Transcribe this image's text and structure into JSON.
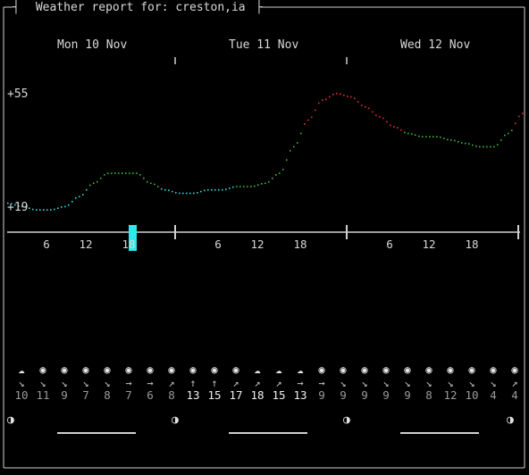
{
  "header": {
    "title": " Weather report for: creston,ia "
  },
  "days": [
    "Mon 10 Nov",
    "Tue 11 Nov",
    "Wed 12 Nov"
  ],
  "y_axis": {
    "max_label": "+55",
    "min_label": "+19"
  },
  "hour_ticks": [
    "6",
    "12",
    "18",
    "6",
    "12",
    "18",
    "6",
    "12",
    "18"
  ],
  "colors": {
    "cold": "#35d8dd",
    "mild": "#3cb83c",
    "warm": "#e03030",
    "cursor": "#33e6ea"
  },
  "chart_data": {
    "type": "line",
    "series": [
      {
        "name": "",
        "unit": "°F",
        "x": [
          0,
          2,
          4,
          6,
          8,
          10,
          12,
          14,
          16,
          18,
          20,
          22,
          24,
          26,
          28,
          30,
          32,
          34,
          36,
          38,
          40,
          42,
          44,
          46,
          48,
          50,
          52,
          54,
          56,
          58,
          60,
          62,
          64,
          66,
          68,
          70,
          72
        ],
        "values": [
          22,
          21,
          20,
          20,
          21,
          24,
          28,
          31,
          31,
          31,
          28,
          26,
          25,
          25,
          26,
          26,
          27,
          27,
          28,
          31,
          39,
          47,
          53,
          55,
          54,
          51,
          48,
          45,
          43,
          42,
          42,
          41,
          40,
          39,
          39,
          43,
          49
        ]
      }
    ],
    "ylim": [
      19,
      55
    ],
    "current_hour": 16
  },
  "forecast": [
    {
      "icon": "☁",
      "dir": "↘",
      "wind": "10"
    },
    {
      "icon": "◉",
      "dir": "↘",
      "wind": "11"
    },
    {
      "icon": "◉",
      "dir": "↘",
      "wind": "9"
    },
    {
      "icon": "◉",
      "dir": "↘",
      "wind": "7"
    },
    {
      "icon": "◉",
      "dir": "↘",
      "wind": "8"
    },
    {
      "icon": "◉",
      "dir": "→",
      "wind": "7"
    },
    {
      "icon": "◉",
      "dir": "→",
      "wind": "6"
    },
    {
      "icon": "◉",
      "dir": "↗",
      "wind": "8"
    },
    {
      "icon": "◉",
      "dir": "↑",
      "wind": "13"
    },
    {
      "icon": "◉",
      "dir": "↑",
      "wind": "15"
    },
    {
      "icon": "◉",
      "dir": "↗",
      "wind": "17"
    },
    {
      "icon": "☁",
      "dir": "↗",
      "wind": "18"
    },
    {
      "icon": "☁",
      "dir": "↗",
      "wind": "15"
    },
    {
      "icon": "☁",
      "dir": "→",
      "wind": "13"
    },
    {
      "icon": "◉",
      "dir": "→",
      "wind": "9"
    },
    {
      "icon": "◉",
      "dir": "↘",
      "wind": "9"
    },
    {
      "icon": "◉",
      "dir": "↘",
      "wind": "9"
    },
    {
      "icon": "◉",
      "dir": "↘",
      "wind": "9"
    },
    {
      "icon": "◉",
      "dir": "↘",
      "wind": "9"
    },
    {
      "icon": "◉",
      "dir": "↘",
      "wind": "8"
    },
    {
      "icon": "◉",
      "dir": "↘",
      "wind": "12"
    },
    {
      "icon": "◉",
      "dir": "↘",
      "wind": "10"
    },
    {
      "icon": "◉",
      "dir": "↘",
      "wind": "4"
    },
    {
      "icon": "◉",
      "dir": "↗",
      "wind": "4"
    }
  ],
  "moon_glyphs": [
    "◑",
    "◑",
    "◑",
    "◑"
  ]
}
